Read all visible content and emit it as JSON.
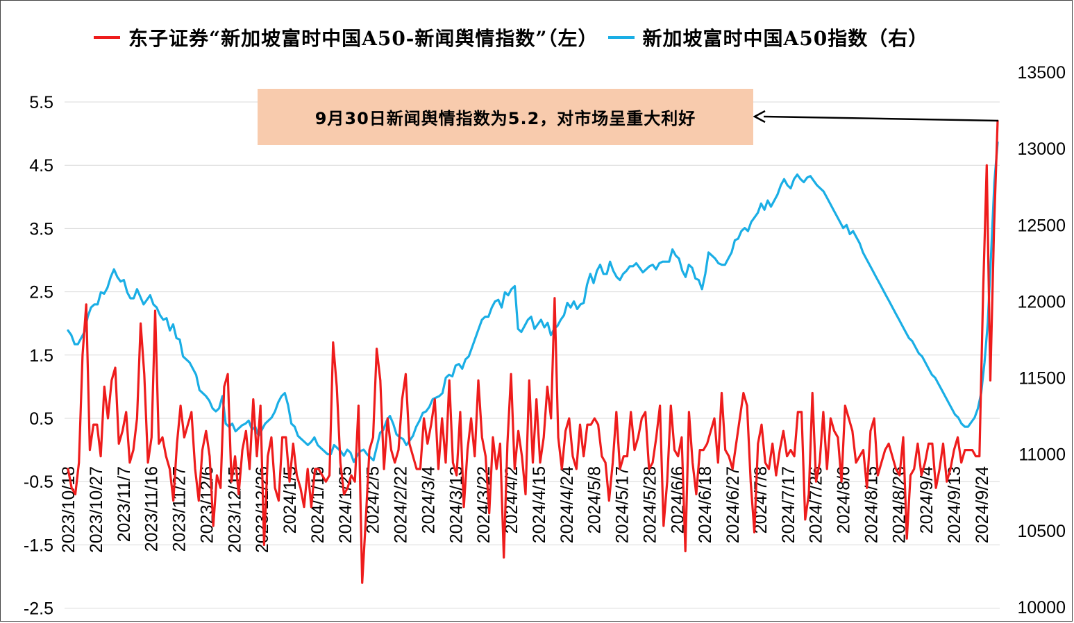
{
  "chart_data": {
    "type": "line",
    "series": [
      {
        "name": "东子证券“新加坡富时中国A50-新闻舆情指数”（左）",
        "axis": "left",
        "color": "#ee1c1c",
        "values": [
          -0.3,
          -0.6,
          -0.7,
          -0.2,
          1.5,
          2.3,
          0.0,
          0.4,
          0.4,
          -0.1,
          1.0,
          0.5,
          1.1,
          1.3,
          0.1,
          0.3,
          0.6,
          -0.2,
          0.0,
          0.5,
          2.0,
          1.2,
          -0.2,
          0.2,
          2.2,
          0.1,
          0.2,
          -0.1,
          -0.3,
          -0.8,
          0.1,
          0.7,
          0.2,
          0.4,
          0.6,
          -0.3,
          -0.8,
          0.0,
          0.3,
          -0.1,
          -1.2,
          -0.4,
          -0.6,
          1.0,
          1.2,
          -0.5,
          -0.1,
          -0.7,
          0.0,
          0.3,
          -0.3,
          0.8,
          -0.1,
          0.7,
          -1.5,
          -0.1,
          0.2,
          -0.6,
          -0.8,
          0.2,
          0.2,
          -0.5,
          0.1,
          -0.4,
          -0.6,
          -0.9,
          -0.3,
          -0.9,
          -0.3,
          -0.3,
          -0.4,
          -0.5,
          -0.4,
          1.7,
          1.0,
          -0.2,
          -0.7,
          -0.6,
          -0.4,
          -0.5,
          0.7,
          -2.1,
          -1.1,
          0.0,
          0.2,
          1.6,
          1.1,
          -0.3,
          0.5,
          0.0,
          -0.2,
          0.0,
          0.8,
          1.2,
          0.1,
          -0.1,
          -0.3,
          -0.3,
          0.5,
          0.1,
          0.4,
          0.8,
          -0.3,
          0.5,
          -0.2,
          1.1,
          -0.2,
          -0.4,
          0.6,
          -0.9,
          0.0,
          0.5,
          -0.1,
          1.1,
          0.2,
          -0.1,
          -1.0,
          0.2,
          -0.3,
          0.1,
          -1.7,
          0.1,
          1.2,
          -0.3,
          0.3,
          -0.1,
          -0.7,
          1.1,
          -0.2,
          0.8,
          -0.2,
          0.2,
          1.0,
          0.5,
          2.4,
          0.2,
          -0.3,
          0.3,
          0.5,
          -0.1,
          -0.3,
          0.4,
          -0.1,
          0.4,
          0.4,
          0.5,
          0.4,
          -0.1,
          -0.2,
          -0.8,
          -0.2,
          0.6,
          -0.3,
          -0.1,
          -0.1,
          0.6,
          0.0,
          0.2,
          0.5,
          0.6,
          -0.3,
          -0.2,
          0.2,
          0.7,
          -1.2,
          -0.5,
          0.7,
          0.0,
          -0.1,
          0.2,
          -1.6,
          0.6,
          -0.2,
          -0.7,
          0.0,
          0.0,
          0.1,
          0.3,
          0.5,
          -0.2,
          0.9,
          0.0,
          -0.1,
          -0.3,
          0.1,
          0.5,
          0.9,
          0.7,
          -0.5,
          -1.3,
          0.1,
          0.4,
          -0.2,
          -0.3,
          0.1,
          -0.4,
          0.0,
          0.3,
          -0.1,
          0.0,
          -0.1,
          0.6,
          0.6,
          -1.1,
          -0.7,
          0.9,
          -0.5,
          -0.2,
          0.6,
          -0.3,
          0.5,
          0.3,
          0.2,
          -0.5,
          0.7,
          0.5,
          0.3,
          -0.2,
          -0.1,
          0.0,
          -0.6,
          0.3,
          0.5,
          -0.4,
          -0.2,
          0.0,
          0.1,
          -0.1,
          -0.3,
          -0.4,
          0.2,
          -1.4,
          -0.4,
          -0.3,
          0.1,
          -0.4,
          -0.2,
          0.1,
          0.1,
          -0.6,
          -0.3,
          0.1,
          -0.5,
          -0.3,
          0.0,
          0.2,
          -0.2,
          0.0,
          0.0,
          0.0,
          -0.1,
          -0.1,
          2.5,
          4.5,
          1.1,
          3.5,
          5.2
        ]
      },
      {
        "name": "新加坡富时中国A50指数（右）",
        "axis": "right",
        "color": "#1aaee5",
        "values": [
          11810,
          11780,
          11720,
          11720,
          11760,
          11800,
          11900,
          11960,
          11980,
          11980,
          12060,
          12050,
          12090,
          12160,
          12210,
          12160,
          12130,
          12140,
          12060,
          12020,
          12020,
          12080,
          12030,
          11980,
          12010,
          12040,
          11980,
          11960,
          11910,
          11880,
          11890,
          11810,
          11850,
          11760,
          11750,
          11640,
          11620,
          11600,
          11560,
          11520,
          11420,
          11400,
          11380,
          11350,
          11300,
          11280,
          11300,
          11380,
          11200,
          11180,
          11200,
          11150,
          11170,
          11190,
          11200,
          11220,
          11160,
          11180,
          11120,
          11160,
          11200,
          11220,
          11240,
          11280,
          11340,
          11380,
          11400,
          11320,
          11200,
          11180,
          11120,
          11100,
          11080,
          11060,
          11080,
          11110,
          11060,
          11040,
          11020,
          11000,
          11000,
          11060,
          11040,
          11020,
          10990,
          11030,
          11010,
          10950,
          10990,
          11020,
          11030,
          11000,
          10980,
          10960,
          11050,
          11140,
          11160,
          11220,
          11250,
          11200,
          11130,
          11110,
          11100,
          11060,
          11090,
          11120,
          11180,
          11220,
          11270,
          11280,
          11310,
          11360,
          11370,
          11380,
          11400,
          11500,
          11520,
          11510,
          11580,
          11590,
          11560,
          11620,
          11640,
          11700,
          11760,
          11820,
          11880,
          11900,
          11900,
          11960,
          12000,
          12010,
          11960,
          12060,
          12040,
          12080,
          12100,
          11820,
          11800,
          11840,
          11880,
          11900,
          11820,
          11850,
          11880,
          11830,
          11860,
          11780,
          11820,
          11840,
          11880,
          11910,
          11990,
          11960,
          12000,
          11950,
          11980,
          11990,
          12110,
          12180,
          12120,
          12200,
          12240,
          12180,
          12180,
          12260,
          12200,
          12160,
          12140,
          12180,
          12200,
          12230,
          12230,
          12250,
          12220,
          12190,
          12210,
          12230,
          12240,
          12210,
          12250,
          12260,
          12260,
          12260,
          12340,
          12300,
          12280,
          12200,
          12160,
          12240,
          12220,
          12150,
          12140,
          12080,
          12180,
          12320,
          12300,
          12280,
          12250,
          12240,
          12240,
          12280,
          12320,
          12400,
          12410,
          12460,
          12480,
          12460,
          12520,
          12550,
          12580,
          12640,
          12600,
          12660,
          12620,
          12660,
          12700,
          12760,
          12800,
          12760,
          12740,
          12800,
          12830,
          12800,
          12780,
          12810,
          12820,
          12790,
          12760,
          12740,
          12720,
          12680,
          12640,
          12600,
          12560,
          12520,
          12480,
          12500,
          12440,
          12460,
          12420,
          12380,
          12320,
          12280,
          12240,
          12200,
          12160,
          12120,
          12080,
          12040,
          12000,
          11960,
          11920,
          11880,
          11840,
          11800,
          11760,
          11740,
          11700,
          11660,
          11640,
          11600,
          11560,
          11520,
          11500,
          11460,
          11420,
          11380,
          11340,
          11300,
          11260,
          11240,
          11200,
          11180,
          11180,
          11210,
          11240,
          11300,
          11400,
          11600,
          11860,
          12300,
          12780,
          13040
        ]
      }
    ],
    "x_tick_labels": [
      "2023/10/18",
      "2023/10/27",
      "2023/11/7",
      "2023/11/16",
      "2023/11/27",
      "2023/12/6",
      "2023/12/15",
      "2023/12/26",
      "2024/1/5",
      "2024/1/16",
      "2024/1/25",
      "2024/2/5",
      "2024/2/22",
      "2024/3/4",
      "2024/3/13",
      "2024/3/22",
      "2024/4/2",
      "2024/4/15",
      "2024/4/24",
      "2024/5/8",
      "2024/5/17",
      "2024/5/28",
      "2024/6/6",
      "2024/6/18",
      "2024/6/27",
      "2024/7/8",
      "2024/7/17",
      "2024/7/26",
      "2024/8/6",
      "2024/8/15",
      "2024/8/26",
      "2024/9/4",
      "2024/9/13",
      "2024/9/24"
    ],
    "y_left_ticks": [
      "5.5",
      "4.5",
      "3.5",
      "2.5",
      "1.5",
      "0.5",
      "-0.5",
      "-1.5",
      "-2.5"
    ],
    "y_right_ticks": [
      "13500",
      "13000",
      "12500",
      "12000",
      "11500",
      "11000",
      "10500",
      "10000"
    ],
    "ylim_left": [
      -2.5,
      6.0
    ],
    "ylim_right": [
      10000,
      13500
    ],
    "grid": true,
    "legend_position": "top",
    "annotation": "9月30日新闻舆情指数为5.2，对市场呈重大利好"
  }
}
